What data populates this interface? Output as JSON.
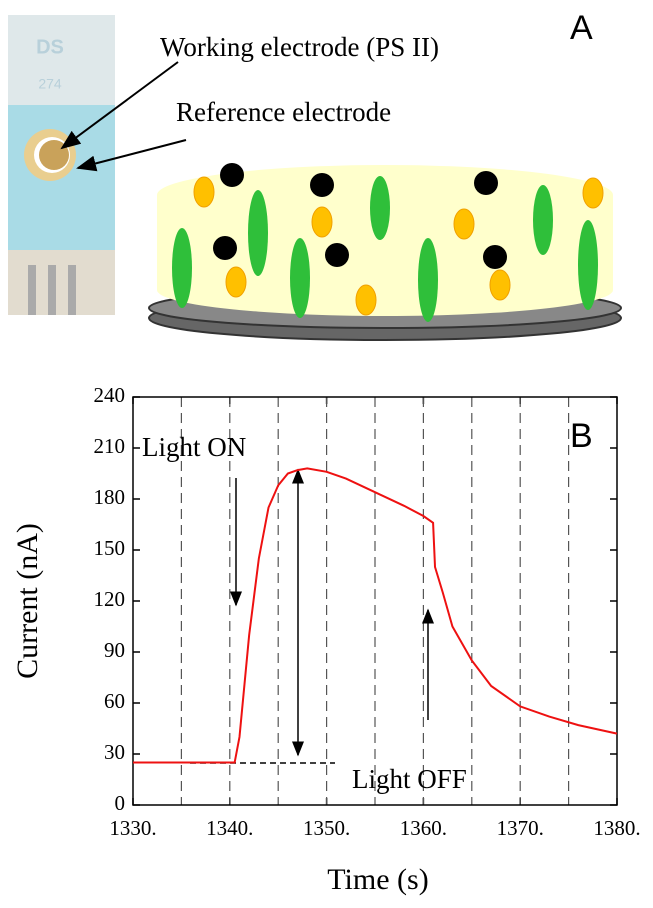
{
  "panel_a": {
    "label": "A",
    "working_electrode": "Working electrode (PS II)",
    "reference_electrode": "Reference electrode",
    "sensor_brand": "DS",
    "sensor_code": "274"
  },
  "chart_data": {
    "type": "line",
    "panel_label": "B",
    "x_label": "Time (s)",
    "y_label": "Current (nA)",
    "annotations": [
      "Light ON",
      "Light OFF"
    ],
    "x": [
      1330,
      1334,
      1338,
      1340.5,
      1341,
      1342,
      1343,
      1344,
      1345,
      1346,
      1347,
      1348,
      1350,
      1352,
      1355,
      1358,
      1360,
      1361,
      1361.2,
      1362,
      1363,
      1365,
      1367,
      1370,
      1373,
      1376,
      1380
    ],
    "values": [
      25,
      25,
      25,
      25,
      40,
      100,
      145,
      175,
      188,
      195,
      197,
      198,
      196,
      192,
      184,
      176,
      170,
      166,
      140,
      125,
      105,
      85,
      70,
      58,
      52,
      47,
      42
    ],
    "color": "#ee1111",
    "xlim": [
      1330,
      1380
    ],
    "ylim": [
      0,
      240
    ],
    "xticks": [
      {
        "value": 1330,
        "label": "1330."
      },
      {
        "value": 1340,
        "label": "1340."
      },
      {
        "value": 1350,
        "label": "1350."
      },
      {
        "value": 1360,
        "label": "1360."
      },
      {
        "value": 1370,
        "label": "1370."
      },
      {
        "value": 1380,
        "label": "1380."
      }
    ],
    "yticks": [
      0,
      30,
      60,
      90,
      120,
      150,
      180,
      210,
      240
    ],
    "xgrid": [
      1335,
      1340,
      1345,
      1350,
      1355,
      1360,
      1365,
      1370,
      1375
    ],
    "grid": true
  }
}
